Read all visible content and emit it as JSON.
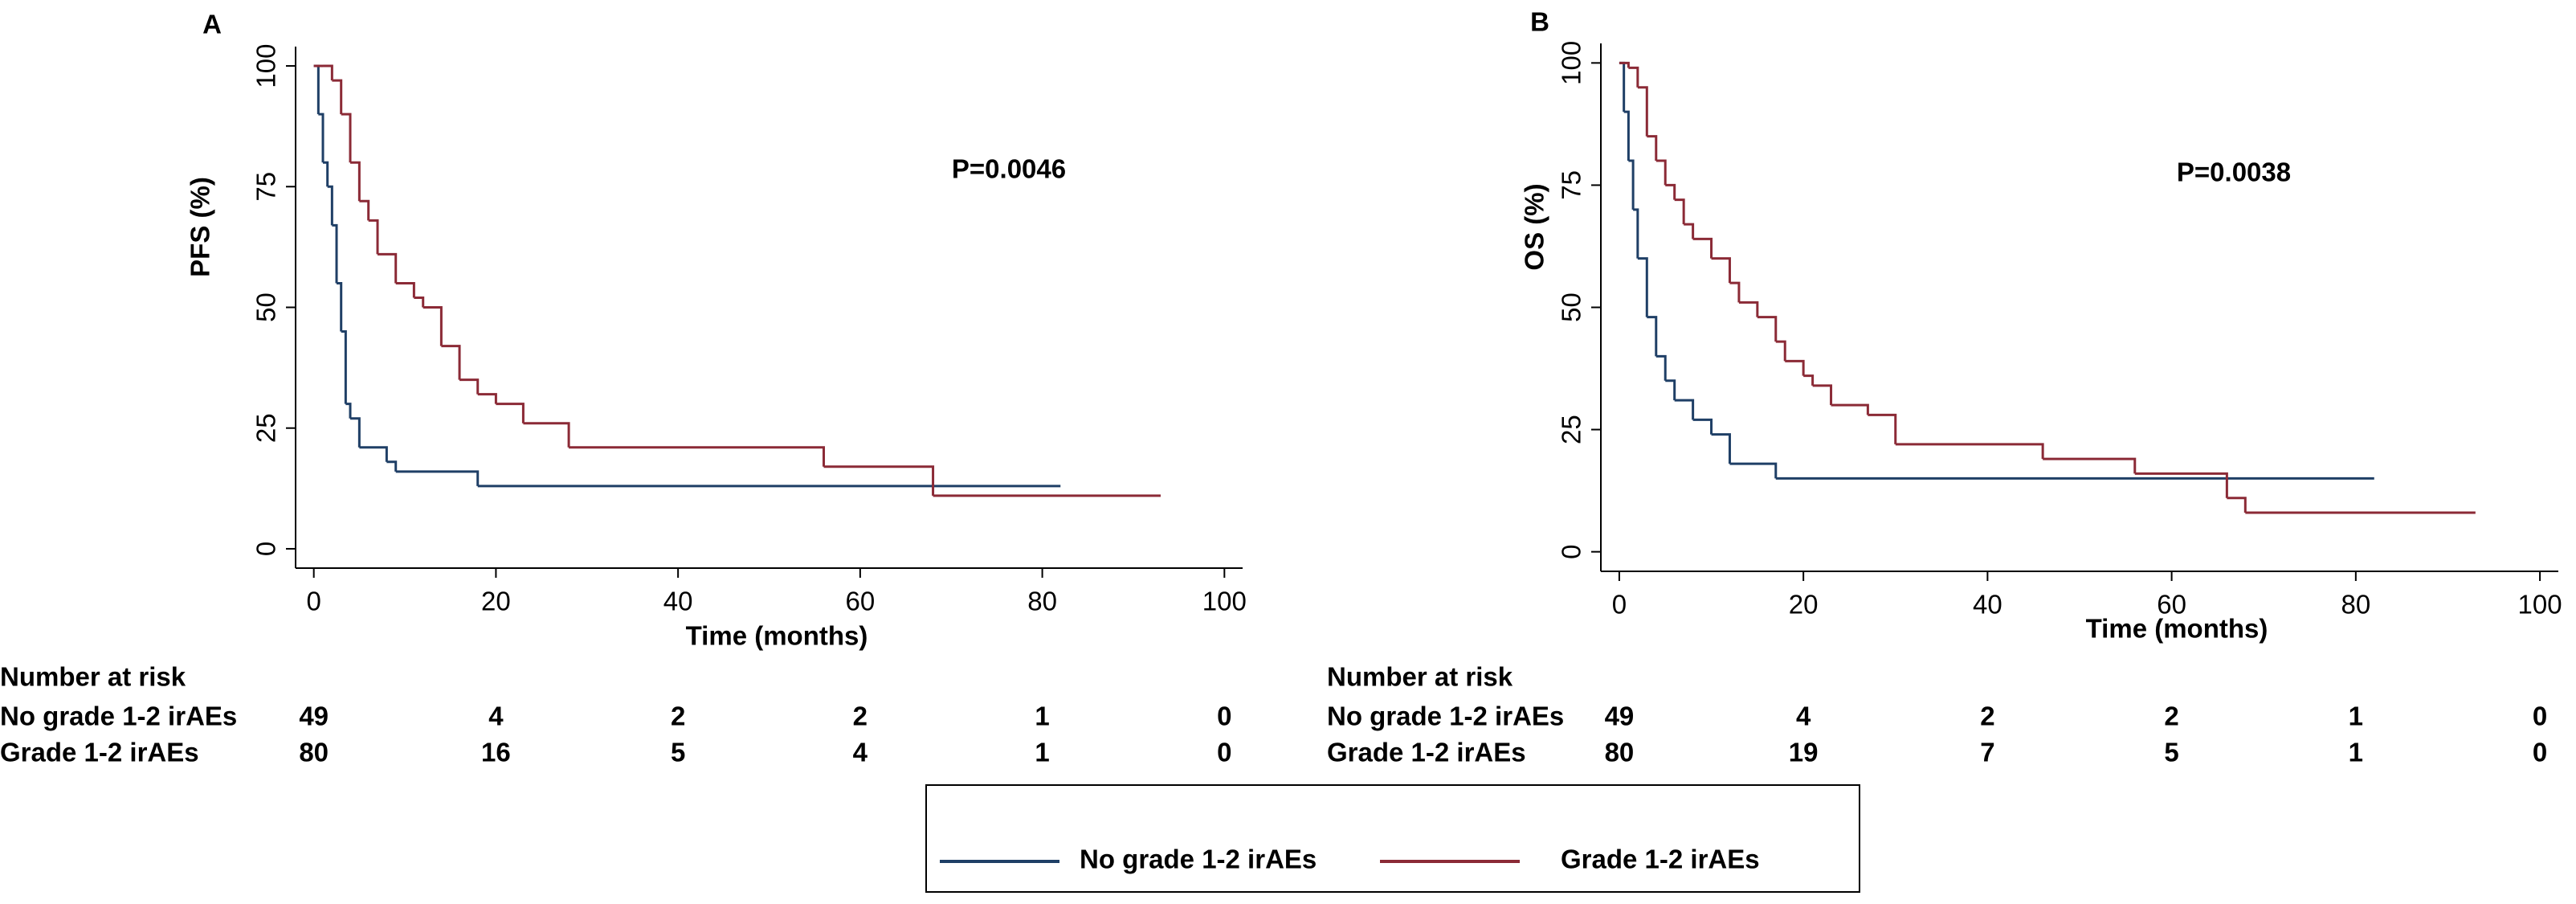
{
  "chart_data": [
    {
      "type": "line",
      "label": "A",
      "ylabel": "PFS (%)",
      "xlabel": "Time (months)",
      "annotation": "P=0.0046",
      "xlim": [
        -2,
        102
      ],
      "xticks": [
        0,
        20,
        40,
        60,
        80,
        100
      ],
      "ylim": [
        -4,
        104
      ],
      "yticks": [
        0,
        25,
        50,
        75,
        100
      ],
      "series": [
        {
          "name": "No grade 1-2 irAEs",
          "color": "#1f3f66",
          "x": [
            0,
            0.5,
            1,
            1.5,
            2,
            2.5,
            3,
            3.5,
            4,
            5,
            8,
            9,
            18,
            82
          ],
          "values": [
            100,
            90,
            80,
            75,
            67,
            55,
            45,
            30,
            27,
            21,
            18,
            16,
            13,
            13
          ]
        },
        {
          "name": "Grade 1-2 irAEs",
          "color": "#8b2a36",
          "x": [
            0,
            1,
            2,
            3,
            4,
            5,
            6,
            7,
            9,
            11,
            12,
            14,
            16,
            18,
            20,
            23,
            28,
            56,
            68,
            93
          ],
          "values": [
            100,
            100,
            97,
            90,
            80,
            72,
            68,
            61,
            55,
            52,
            50,
            42,
            35,
            32,
            30,
            26,
            21,
            17,
            11,
            11
          ]
        }
      ],
      "risk_table": {
        "title": "Number at risk",
        "rows": [
          {
            "label": "No grade 1-2 irAEs",
            "counts": [
              49,
              4,
              2,
              2,
              1,
              0
            ]
          },
          {
            "label": "Grade 1-2 irAEs",
            "counts": [
              80,
              16,
              5,
              4,
              1,
              0
            ]
          }
        ]
      }
    },
    {
      "type": "line",
      "label": "B",
      "ylabel": "OS (%)",
      "xlabel": "Time (months)",
      "annotation": "P=0.0038",
      "xlim": [
        -2,
        102
      ],
      "xticks": [
        0,
        20,
        40,
        60,
        80,
        100
      ],
      "ylim": [
        -4,
        104
      ],
      "yticks": [
        0,
        25,
        50,
        75,
        100
      ],
      "series": [
        {
          "name": "No grade 1-2 irAEs",
          "color": "#1f3f66",
          "x": [
            0,
            0.5,
            1,
            1.5,
            2,
            3,
            4,
            5,
            6,
            8,
            10,
            12,
            17,
            82
          ],
          "values": [
            100,
            90,
            80,
            70,
            60,
            48,
            40,
            35,
            31,
            27,
            24,
            18,
            15,
            15
          ]
        },
        {
          "name": "Grade 1-2 irAEs",
          "color": "#8b2a36",
          "x": [
            0,
            1,
            2,
            3,
            4,
            5,
            6,
            7,
            8,
            10,
            12,
            13,
            15,
            17,
            18,
            20,
            21,
            23,
            27,
            30,
            46,
            56,
            66,
            68,
            93
          ],
          "values": [
            100,
            99,
            95,
            85,
            80,
            75,
            72,
            67,
            64,
            60,
            55,
            51,
            48,
            43,
            39,
            36,
            34,
            30,
            28,
            22,
            19,
            16,
            11,
            8,
            8
          ]
        }
      ],
      "risk_table": {
        "title": "Number at risk",
        "rows": [
          {
            "label": "No grade 1-2 irAEs",
            "counts": [
              49,
              4,
              2,
              2,
              1,
              0
            ]
          },
          {
            "label": "Grade 1-2 irAEs",
            "counts": [
              80,
              19,
              7,
              5,
              1,
              0
            ]
          }
        ]
      }
    }
  ]
}
